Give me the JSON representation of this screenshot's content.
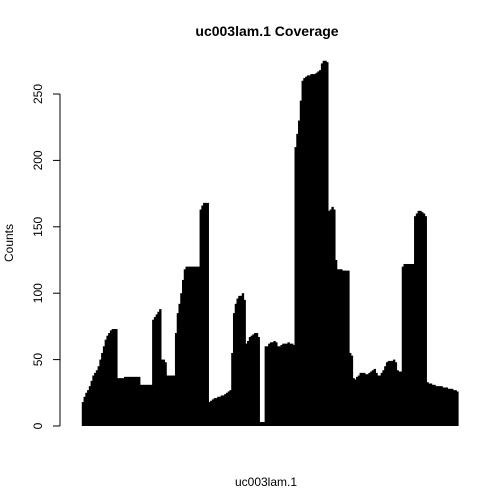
{
  "chart_data": {
    "type": "bar",
    "title": "uc003lam.1 Coverage",
    "xlabel": "uc003lam.1",
    "ylabel": "Counts",
    "ylim": [
      0,
      270
    ],
    "yticks": [
      0,
      50,
      100,
      150,
      200,
      250
    ],
    "bar_color": "#000000",
    "values": [
      0,
      0,
      0,
      0,
      0,
      18,
      22,
      25,
      27,
      30,
      34,
      38,
      40,
      42,
      45,
      50,
      55,
      60,
      65,
      68,
      70,
      72,
      73,
      73,
      73,
      36,
      36,
      36,
      36,
      37,
      37,
      37,
      37,
      37,
      37,
      37,
      37,
      37,
      31,
      31,
      31,
      31,
      31,
      31,
      31,
      80,
      82,
      84,
      86,
      88,
      50,
      50,
      48,
      38,
      38,
      38,
      38,
      38,
      70,
      85,
      92,
      100,
      110,
      118,
      120,
      120,
      120,
      120,
      120,
      120,
      120,
      120,
      163,
      166,
      168,
      168,
      168,
      18,
      19,
      20,
      21,
      21,
      22,
      22,
      23,
      23,
      24,
      25,
      26,
      27,
      55,
      85,
      92,
      96,
      98,
      98,
      100,
      95,
      62,
      64,
      67,
      68,
      69,
      70,
      70,
      67,
      3,
      3,
      3,
      60,
      60,
      62,
      63,
      63,
      64,
      63,
      60,
      60,
      61,
      62,
      62,
      62,
      63,
      62,
      62,
      61,
      210,
      220,
      230,
      245,
      260,
      262,
      263,
      264,
      264,
      265,
      265,
      265,
      266,
      267,
      268,
      273,
      275,
      275,
      274,
      162,
      163,
      165,
      163,
      125,
      118,
      118,
      118,
      117,
      117,
      117,
      117,
      55,
      53,
      36,
      35,
      37,
      38,
      40,
      40,
      40,
      39,
      39,
      40,
      41,
      42,
      43,
      40,
      38,
      38,
      40,
      42,
      45,
      48,
      49,
      49,
      49,
      50,
      48,
      42,
      41,
      41,
      120,
      122,
      122,
      122,
      122,
      122,
      122,
      158,
      160,
      162,
      162,
      161,
      160,
      158,
      33,
      32,
      32,
      31,
      31,
      30,
      30,
      30,
      30,
      29,
      29,
      29,
      28,
      28,
      28,
      27,
      27,
      26
    ]
  }
}
